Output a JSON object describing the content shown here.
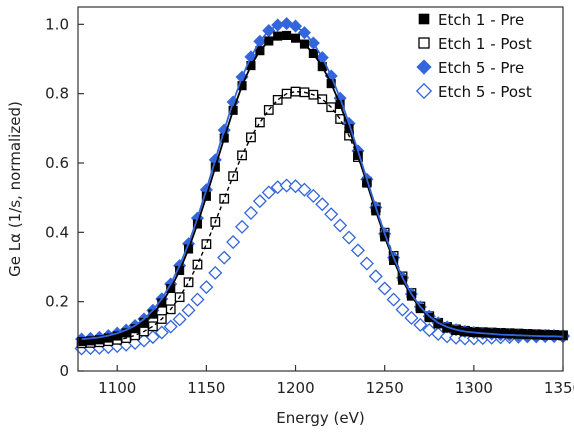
{
  "chart_data": {
    "type": "scatter",
    "title": "",
    "xlabel": "Energy (eV)",
    "ylabel": "Ge Lα (1/s, normalized)",
    "xlim": [
      1078,
      1350
    ],
    "ylim": [
      0,
      1.05
    ],
    "xticks": [
      1100,
      1150,
      1200,
      1250,
      1300,
      1350
    ],
    "yticks": [
      0,
      0.2,
      0.4,
      0.6,
      0.8,
      1.0
    ],
    "xtick_labels": [
      "1100",
      "1150",
      "1200",
      "1250",
      "1300",
      "1350"
    ],
    "ytick_labels": [
      "0",
      "0.2",
      "0.4",
      "0.6",
      "0.8",
      "1.0"
    ],
    "grid": false,
    "legend_position": "top-right",
    "x": [
      1080,
      1085,
      1090,
      1095,
      1100,
      1105,
      1110,
      1115,
      1120,
      1125,
      1130,
      1135,
      1140,
      1145,
      1150,
      1155,
      1160,
      1165,
      1170,
      1175,
      1180,
      1185,
      1190,
      1195,
      1200,
      1205,
      1210,
      1215,
      1220,
      1225,
      1230,
      1235,
      1240,
      1245,
      1250,
      1255,
      1260,
      1265,
      1270,
      1275,
      1280,
      1285,
      1290,
      1295,
      1300,
      1305,
      1310,
      1315,
      1320,
      1325,
      1330,
      1335,
      1340,
      1345,
      1350
    ],
    "series": [
      {
        "name": "Etch 1 - Pre",
        "marker": "filled-square",
        "color": "#000000",
        "values": [
          0.085,
          0.087,
          0.09,
          0.095,
          0.101,
          0.11,
          0.122,
          0.14,
          0.164,
          0.196,
          0.238,
          0.29,
          0.352,
          0.424,
          0.504,
          0.588,
          0.672,
          0.752,
          0.823,
          0.881,
          0.924,
          0.952,
          0.966,
          0.968,
          0.96,
          0.943,
          0.916,
          0.878,
          0.829,
          0.769,
          0.699,
          0.622,
          0.542,
          0.462,
          0.387,
          0.319,
          0.262,
          0.216,
          0.18,
          0.154,
          0.136,
          0.124,
          0.117,
          0.113,
          0.111,
          0.11,
          0.109,
          0.108,
          0.107,
          0.106,
          0.105,
          0.104,
          0.103,
          0.103,
          0.102
        ]
      },
      {
        "name": "Etch 1 - Post",
        "marker": "open-square",
        "color": "#000000",
        "values": [
          0.08,
          0.081,
          0.083,
          0.086,
          0.09,
          0.095,
          0.103,
          0.114,
          0.129,
          0.15,
          0.178,
          0.213,
          0.256,
          0.307,
          0.366,
          0.43,
          0.497,
          0.562,
          0.622,
          0.674,
          0.717,
          0.753,
          0.782,
          0.8,
          0.806,
          0.804,
          0.797,
          0.784,
          0.761,
          0.727,
          0.679,
          0.617,
          0.546,
          0.472,
          0.399,
          0.332,
          0.273,
          0.225,
          0.186,
          0.158,
          0.139,
          0.127,
          0.12,
          0.116,
          0.113,
          0.112,
          0.111,
          0.11,
          0.109,
          0.108,
          0.107,
          0.106,
          0.105,
          0.104,
          0.103
        ]
      },
      {
        "name": "Etch 5 - Pre",
        "marker": "filled-diamond",
        "color": "#3366dd",
        "values": [
          0.092,
          0.094,
          0.097,
          0.102,
          0.109,
          0.118,
          0.131,
          0.15,
          0.175,
          0.208,
          0.251,
          0.304,
          0.367,
          0.441,
          0.523,
          0.609,
          0.695,
          0.776,
          0.848,
          0.906,
          0.951,
          0.982,
          0.998,
          1.002,
          0.995,
          0.976,
          0.946,
          0.904,
          0.851,
          0.787,
          0.714,
          0.635,
          0.553,
          0.472,
          0.396,
          0.327,
          0.269,
          0.222,
          0.185,
          0.158,
          0.139,
          0.127,
          0.119,
          0.114,
          0.111,
          0.109,
          0.107,
          0.105,
          0.104,
          0.103,
          0.102,
          0.101,
          0.1,
          0.1,
          0.099
        ]
      },
      {
        "name": "Etch 5 - Post",
        "marker": "open-diamond",
        "color": "#3366dd",
        "values": [
          0.065,
          0.066,
          0.067,
          0.069,
          0.072,
          0.076,
          0.081,
          0.088,
          0.098,
          0.111,
          0.128,
          0.149,
          0.175,
          0.206,
          0.242,
          0.283,
          0.327,
          0.372,
          0.416,
          0.456,
          0.49,
          0.515,
          0.53,
          0.535,
          0.533,
          0.523,
          0.505,
          0.481,
          0.452,
          0.42,
          0.385,
          0.348,
          0.31,
          0.273,
          0.238,
          0.206,
          0.177,
          0.153,
          0.133,
          0.118,
          0.107,
          0.1,
          0.096,
          0.094,
          0.094,
          0.095,
          0.096,
          0.097,
          0.098,
          0.099,
          0.1,
          0.1,
          0.101,
          0.101,
          0.101
        ]
      }
    ],
    "fit_lines": [
      {
        "series": "Etch 1 - Pre",
        "style": "solid",
        "color": "#000000"
      },
      {
        "series": "Etch 1 - Post",
        "style": "dashed",
        "color": "#000000"
      },
      {
        "series": "Etch 5 - Pre",
        "style": "solid",
        "color": "#3366dd"
      }
    ]
  }
}
